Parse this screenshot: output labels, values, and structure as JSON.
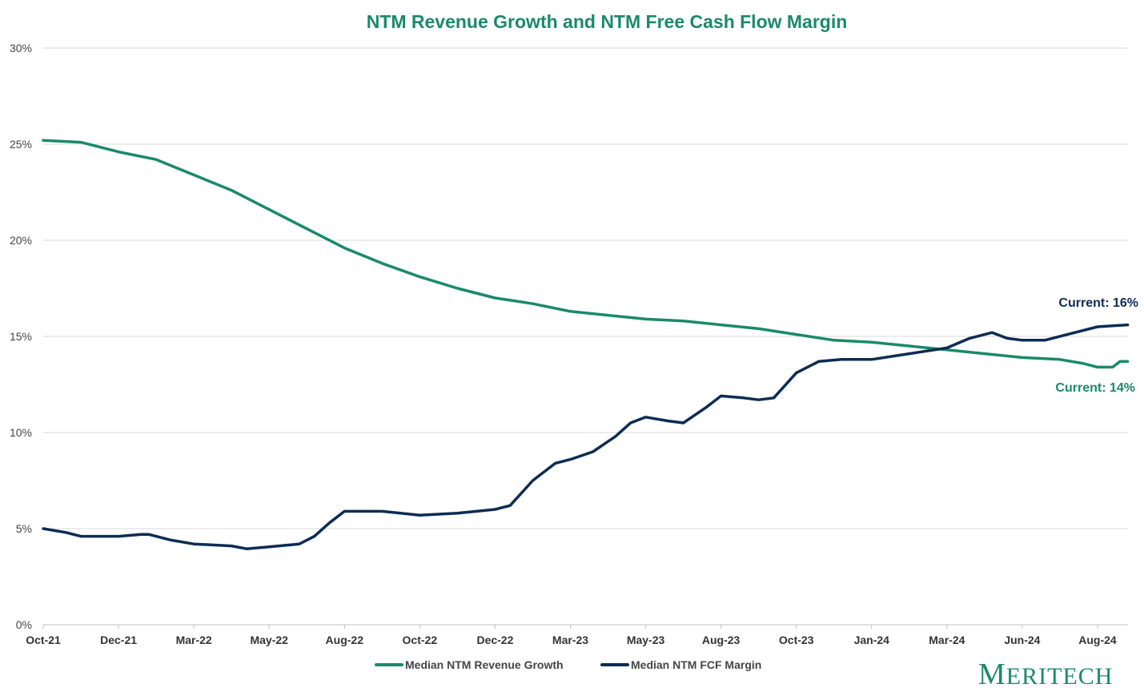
{
  "chart_data": {
    "type": "line",
    "title": "NTM Revenue Growth and NTM Free Cash Flow Margin",
    "xlabel": "",
    "ylabel": "",
    "ylim": [
      0,
      30
    ],
    "yticks": [
      "0%",
      "5%",
      "10%",
      "15%",
      "20%",
      "25%",
      "30%"
    ],
    "ytick_values": [
      0,
      5,
      10,
      15,
      20,
      25,
      30
    ],
    "xticks": [
      "Oct-21",
      "Dec-21",
      "Mar-22",
      "May-22",
      "Aug-22",
      "Oct-22",
      "Dec-22",
      "Mar-23",
      "May-23",
      "Aug-23",
      "Oct-23",
      "Jan-24",
      "Mar-24",
      "Jun-24",
      "Aug-24"
    ],
    "xlim": [
      0,
      14.4
    ],
    "grid": true,
    "legend_position": "bottom",
    "series": [
      {
        "name": "Median NTM Revenue Growth",
        "color": "#1a8a6a",
        "x": [
          0,
          0.5,
          1,
          1.5,
          2,
          2.5,
          3,
          3.5,
          4,
          4.5,
          5,
          5.5,
          6,
          6.5,
          7,
          7.5,
          8,
          8.5,
          9,
          9.5,
          10,
          10.5,
          11,
          11.5,
          12,
          12.5,
          13,
          13.5,
          13.8,
          14,
          14.2,
          14.3,
          14.4
        ],
        "y": [
          25.2,
          25.1,
          24.6,
          24.2,
          23.4,
          22.6,
          21.6,
          20.6,
          19.6,
          18.8,
          18.1,
          17.5,
          17.0,
          16.7,
          16.3,
          16.1,
          15.9,
          15.8,
          15.6,
          15.4,
          15.1,
          14.8,
          14.7,
          14.5,
          14.3,
          14.1,
          13.9,
          13.8,
          13.6,
          13.4,
          13.4,
          13.7,
          13.7
        ]
      },
      {
        "name": "Median NTM FCF Margin",
        "color": "#0d2c54",
        "x": [
          0,
          0.3,
          0.5,
          1,
          1.3,
          1.4,
          1.7,
          2,
          2.5,
          2.7,
          3,
          3.4,
          3.6,
          3.8,
          4,
          4.5,
          5,
          5.5,
          6,
          6.2,
          6.5,
          6.8,
          7,
          7.3,
          7.6,
          7.8,
          8,
          8.3,
          8.5,
          8.8,
          9,
          9.3,
          9.5,
          9.7,
          10,
          10.3,
          10.6,
          11,
          11.5,
          12,
          12.3,
          12.6,
          12.8,
          13,
          13.3,
          13.6,
          14,
          14.4
        ],
        "y": [
          5.0,
          4.8,
          4.6,
          4.6,
          4.7,
          4.7,
          4.4,
          4.2,
          4.1,
          3.95,
          4.05,
          4.2,
          4.6,
          5.3,
          5.9,
          5.9,
          5.7,
          5.8,
          6.0,
          6.2,
          7.5,
          8.4,
          8.6,
          9.0,
          9.8,
          10.5,
          10.8,
          10.6,
          10.5,
          11.3,
          11.9,
          11.8,
          11.7,
          11.8,
          13.1,
          13.7,
          13.8,
          13.8,
          14.1,
          14.4,
          14.9,
          15.2,
          14.9,
          14.8,
          14.8,
          15.1,
          15.5,
          15.6
        ]
      }
    ],
    "annotations": [
      {
        "text": "Current: 16%",
        "series": "Median NTM FCF Margin",
        "color": "#0d2c54"
      },
      {
        "text": "Current: 14%",
        "series": "Median NTM Revenue Growth",
        "color": "#1a8a6a"
      }
    ]
  },
  "logo": "MERITECH"
}
